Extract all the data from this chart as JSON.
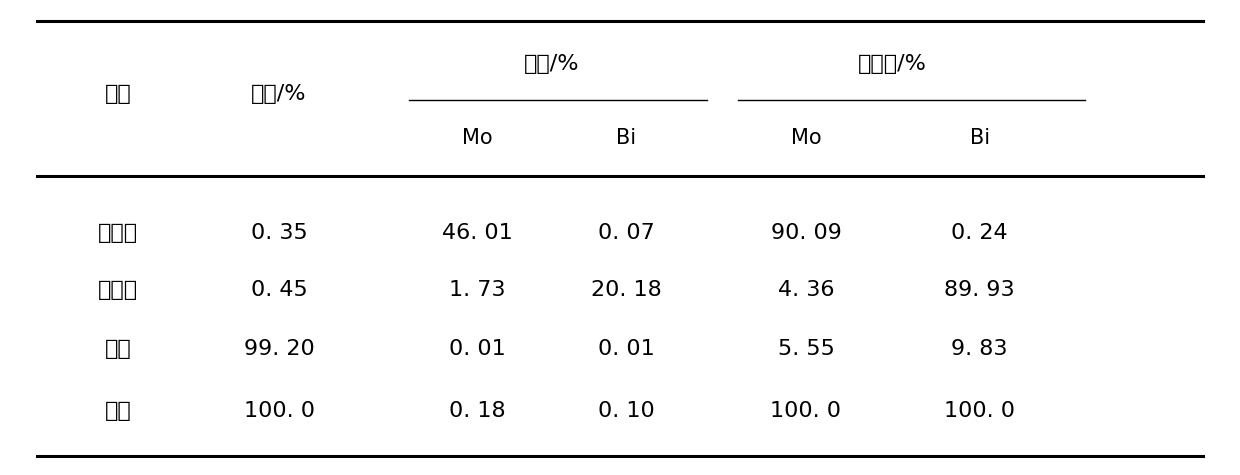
{
  "col1_header": "产品",
  "col2_header": "产率/%",
  "group1_header": "品位/%",
  "group2_header": "回收率/%",
  "sub_headers": [
    "Mo",
    "Bi",
    "Mo",
    "Bi"
  ],
  "rows": [
    [
      "馒精矿",
      "0. 35",
      "46. 01",
      "0. 07",
      "90. 09",
      "0. 24"
    ],
    [
      "铋精矿",
      "0. 45",
      "1. 73",
      "20. 18",
      "4. 36",
      "89. 93"
    ],
    [
      "尾矿",
      "99. 20",
      "0. 01",
      "0. 01",
      "5. 55",
      "9. 83"
    ],
    [
      "原矿",
      "100. 0",
      "0. 18",
      "0. 10",
      "100. 0",
      "100. 0"
    ]
  ],
  "bg_color": "#ffffff",
  "text_color": "#000000",
  "line_color": "#000000",
  "font_size": 16,
  "font_size_sub": 15
}
